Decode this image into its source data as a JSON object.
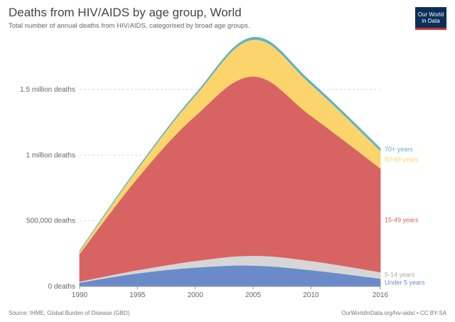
{
  "header": {
    "title": "Deaths from HIV/AIDS by age group, World",
    "subtitle": "Total number of annual deaths from HIV/AIDS, categorised by broad age groups.",
    "logo_text": "Our World in Data"
  },
  "footer": {
    "source": "Source: IHME, Global Burden of Disease (GBD)",
    "credit": "OurWorldInData.org/hiv-aids/ • CC BY-SA"
  },
  "colors": {
    "under5": "#6a8bc8",
    "age5_14": "#d6d6d6",
    "age15_49": "#d76463",
    "age50_69": "#fbd56c",
    "age70plus": "#5db3c6",
    "grid": "#dddddd",
    "axis": "#666666"
  },
  "chart_data": {
    "type": "area",
    "stacked": true,
    "x": [
      1990,
      1995,
      2000,
      2005,
      2010,
      2016
    ],
    "ylim": [
      0,
      1900000
    ],
    "y_ticks": [
      {
        "value": 0,
        "label": "0 deaths"
      },
      {
        "value": 500000,
        "label": "500,000 deaths"
      },
      {
        "value": 1000000,
        "label": "1 million deaths"
      },
      {
        "value": 1500000,
        "label": "1.5 million deaths"
      }
    ],
    "x_ticks": [
      "1990",
      "1995",
      "2000",
      "2005",
      "2010",
      "2016"
    ],
    "series": [
      {
        "name": "Under 5 years",
        "color_key": "under5",
        "values": [
          30000,
          100000,
          145000,
          160000,
          125000,
          60000
        ]
      },
      {
        "name": "5-14 years",
        "color_key": "age5_14",
        "values": [
          8000,
          25000,
          50000,
          75000,
          70000,
          50000
        ]
      },
      {
        "name": "15-49 years",
        "color_key": "age15_49",
        "values": [
          212000,
          700000,
          1105000,
          1365000,
          1105000,
          790000
        ]
      },
      {
        "name": "50-69 years",
        "color_key": "age50_69",
        "values": [
          20000,
          70000,
          155000,
          280000,
          240000,
          135000
        ]
      },
      {
        "name": "70+ years",
        "color_key": "age70plus",
        "values": [
          2000,
          6000,
          10000,
          17000,
          18000,
          17000
        ]
      }
    ],
    "legend_placement": "right, at series ends",
    "grid": "horizontal dotted"
  }
}
